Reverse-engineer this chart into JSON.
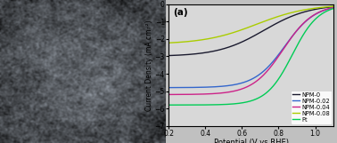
{
  "title": "(a)",
  "xlabel": "Potential (V vs.RHE)",
  "ylabel": "Current Density (mA cm⁻²)",
  "xlim": [
    0.2,
    1.1
  ],
  "ylim": [
    -7,
    0
  ],
  "yticks": [
    0,
    -1,
    -2,
    -3,
    -4,
    -5,
    -6,
    -7
  ],
  "xticks": [
    0.2,
    0.4,
    0.6,
    0.8,
    1.0
  ],
  "series": [
    {
      "label": "NPM-0",
      "color": "#1a1a2e",
      "limit": -3.0,
      "hw": 0.72,
      "k": 8
    },
    {
      "label": "NPM-0.02",
      "color": "#3366cc",
      "limit": -4.8,
      "hw": 0.835,
      "k": 12
    },
    {
      "label": "NPM-0.04",
      "color": "#cc2288",
      "limit": -5.2,
      "hw": 0.825,
      "k": 12
    },
    {
      "label": "NPM-0.08",
      "color": "#aacc00",
      "limit": -2.3,
      "hw": 0.68,
      "k": 7
    },
    {
      "label": "Pt",
      "color": "#00cc55",
      "limit": -5.8,
      "hw": 0.875,
      "k": 14
    }
  ],
  "sem_color_top": "#555555",
  "sem_color_mid": "#777777",
  "background_color": "#d8d8d8"
}
